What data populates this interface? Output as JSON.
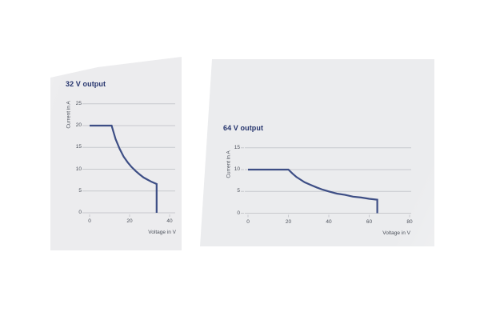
{
  "page": {
    "background": "#ffffff",
    "kind": "power-supply output derating curves, two panels"
  },
  "colors": {
    "curve": "#3d4e85",
    "title_text": "#25346d",
    "grid_line": "#c7c9cd",
    "tick_text": "#4c515b",
    "panel_left": "#ececee",
    "panel_right": "#ebecee"
  },
  "chart_data": [
    {
      "type": "line",
      "title": "32 V output",
      "xlabel": "Voltage in V",
      "ylabel": "Current in A",
      "xlim": [
        0,
        40
      ],
      "ylim": [
        0,
        25
      ],
      "xticks": [
        0,
        20,
        40
      ],
      "yticks": [
        0,
        5,
        10,
        15,
        20,
        25
      ],
      "grid": true,
      "legend": null,
      "series": [
        {
          "name": "32v-output-characteristic",
          "description": "Constant current 20 A up to ~11 V, then constant power ~220 W down to ~6.6 A at 33.5 V, vertical cutoff to 0 A",
          "points": [
            [
              0,
              20
            ],
            [
              11,
              20
            ],
            [
              13,
              16.9
            ],
            [
              15,
              14.7
            ],
            [
              17,
              12.9
            ],
            [
              19,
              11.6
            ],
            [
              21,
              10.5
            ],
            [
              23,
              9.6
            ],
            [
              25,
              8.8
            ],
            [
              27,
              8.1
            ],
            [
              29,
              7.6
            ],
            [
              31,
              7.1
            ],
            [
              33.5,
              6.6
            ],
            [
              33.5,
              0
            ]
          ]
        }
      ]
    },
    {
      "type": "line",
      "title": "64 V output",
      "xlabel": "Voltage in V",
      "ylabel": "Current in A",
      "xlim": [
        0,
        80
      ],
      "ylim": [
        0,
        15
      ],
      "xticks": [
        0,
        20,
        40,
        60,
        80
      ],
      "yticks": [
        0,
        5,
        10,
        15
      ],
      "grid": true,
      "legend": null,
      "series": [
        {
          "name": "64v-output-characteristic",
          "description": "Constant current 10 A up to 20 V, then constant power ~200 W down to ~3.1 A at 64 V, vertical cutoff to 0 A",
          "points": [
            [
              0,
              10
            ],
            [
              20,
              10
            ],
            [
              22,
              9.1
            ],
            [
              24,
              8.3
            ],
            [
              26,
              7.7
            ],
            [
              28,
              7.1
            ],
            [
              31,
              6.5
            ],
            [
              34,
              5.9
            ],
            [
              37,
              5.4
            ],
            [
              40,
              5
            ],
            [
              44,
              4.5
            ],
            [
              48,
              4.2
            ],
            [
              52,
              3.8
            ],
            [
              56,
              3.6
            ],
            [
              60,
              3.3
            ],
            [
              64,
              3.1
            ],
            [
              64,
              0
            ]
          ]
        }
      ]
    }
  ]
}
